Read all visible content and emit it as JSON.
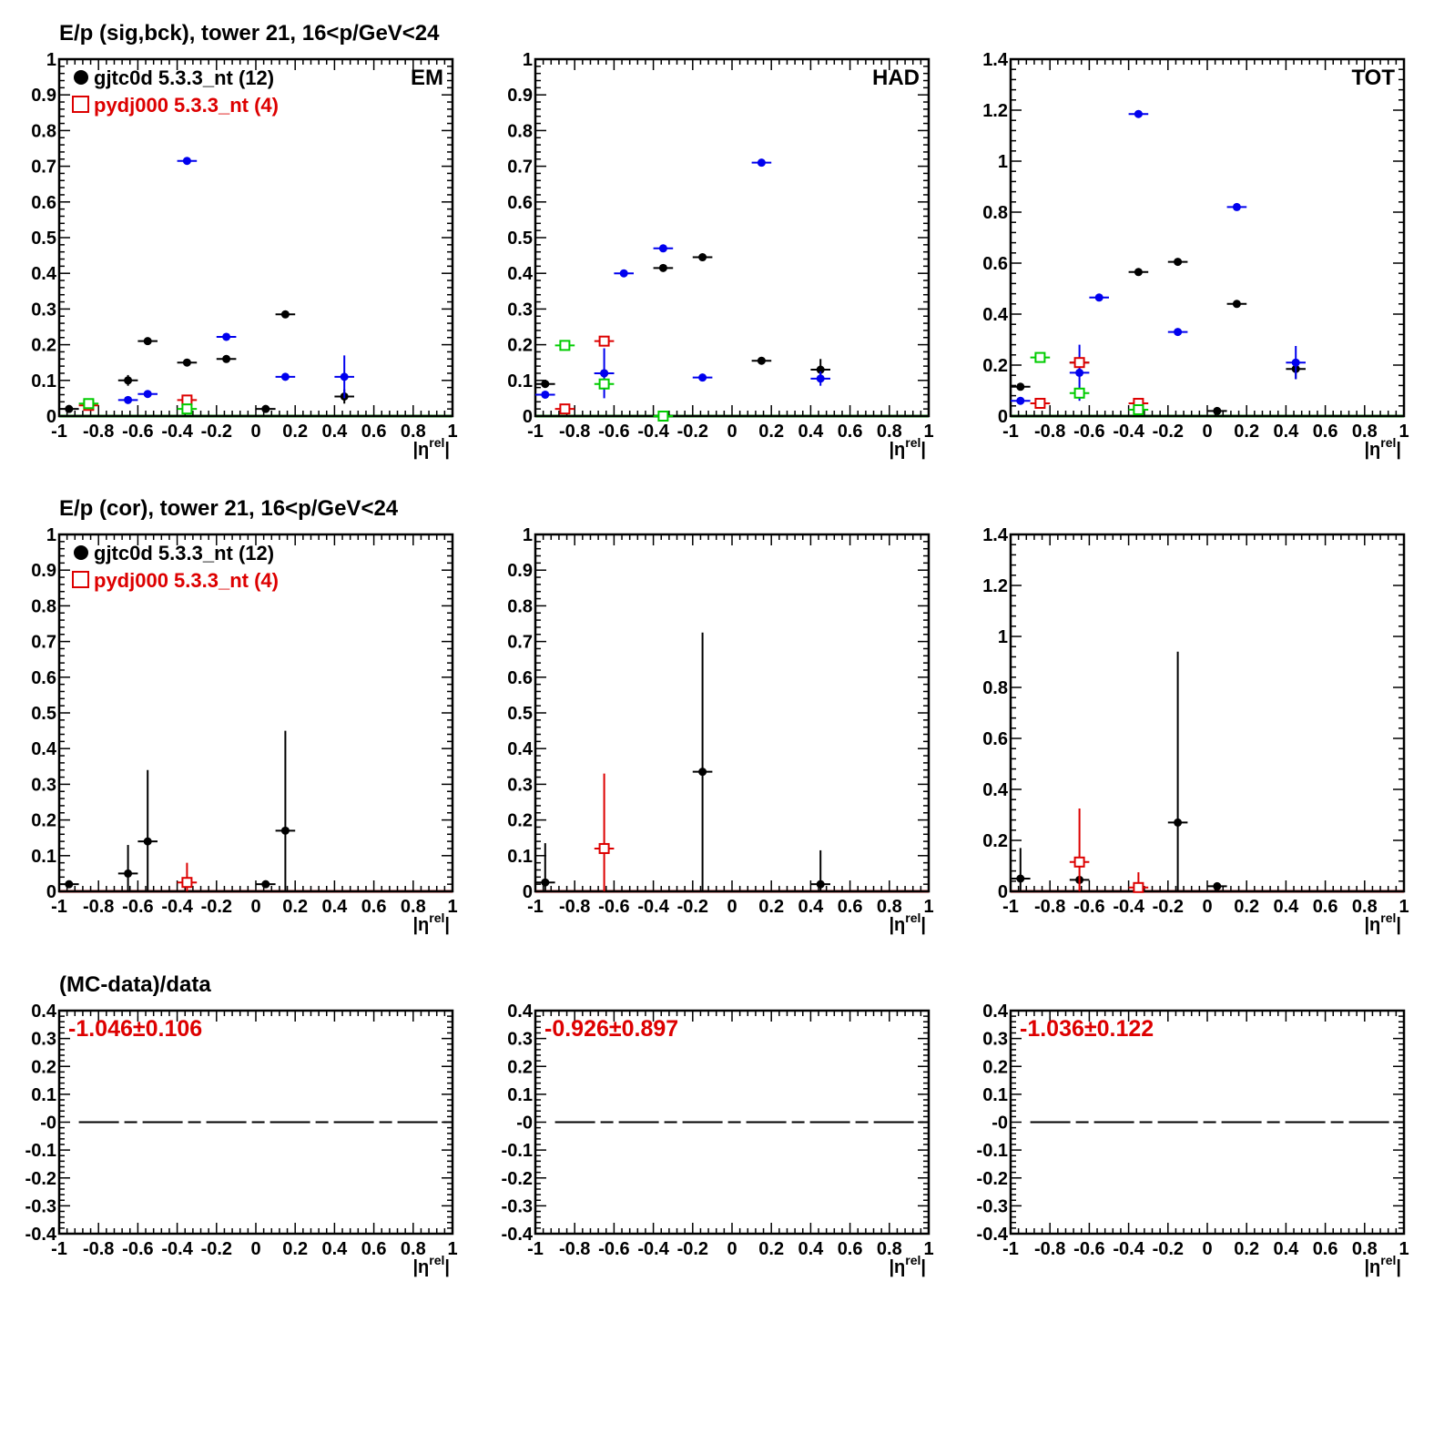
{
  "rows": [
    {
      "title": "E/p (sig,bck), tower 21, 16<p/GeV<24",
      "legend": [
        {
          "label": "gjtc0d 5.3.3_nt (12)",
          "color": "#000000",
          "marker": "filled-circle"
        },
        {
          "label": "pydj000 5.3.3_nt (4)",
          "color": "#dd0000",
          "marker": "open-square"
        }
      ]
    },
    {
      "title": "E/p (cor), tower 21, 16<p/GeV<24",
      "legend": [
        {
          "label": "gjtc0d 5.3.3_nt (12)",
          "color": "#000000",
          "marker": "filled-circle"
        },
        {
          "label": "pydj000 5.3.3_nt (4)",
          "color": "#dd0000",
          "marker": "open-square"
        }
      ]
    },
    {
      "title": "(MC-data)/data",
      "legend": []
    }
  ],
  "colors": {
    "data": "#000000",
    "mc": "#dd0000",
    "sig": "#0000ee",
    "bck": "#00cc00",
    "ratio_text": "#dd0000"
  },
  "chart_data": [
    {
      "type": "scatter",
      "row": 0,
      "col": 0,
      "corner_label": "EM",
      "xlim": [
        -1,
        1
      ],
      "ylim": [
        0,
        1
      ],
      "xlabel": "|η^rel|",
      "xticks": [
        "-1",
        "-0.8",
        "-0.6",
        "-0.4",
        "-0.2",
        "0",
        "0.2",
        "0.4",
        "0.6",
        "0.8",
        "1"
      ],
      "yticks": [
        "0",
        "0.1",
        "0.2",
        "0.3",
        "0.4",
        "0.5",
        "0.6",
        "0.7",
        "0.8",
        "0.9",
        "1"
      ],
      "baseline": {
        "y": 0,
        "color": "#00cc00"
      },
      "series": [
        {
          "color": "#000000",
          "marker": "dot",
          "points": [
            {
              "x": -0.95,
              "y": 0.02,
              "ex": 0.05,
              "ey": 0.005
            },
            {
              "x": -0.65,
              "y": 0.1,
              "ex": 0.05,
              "ey": 0.015
            },
            {
              "x": -0.55,
              "y": 0.21,
              "ex": 0.05,
              "ey": 0.005
            },
            {
              "x": -0.35,
              "y": 0.15,
              "ex": 0.05,
              "ey": 0.005
            },
            {
              "x": -0.15,
              "y": 0.16,
              "ex": 0.05,
              "ey": 0.005
            },
            {
              "x": 0.05,
              "y": 0.02,
              "ex": 0.05,
              "ey": 0.005
            },
            {
              "x": 0.15,
              "y": 0.285,
              "ex": 0.05,
              "ey": 0.005
            },
            {
              "x": 0.45,
              "y": 0.055,
              "ex": 0.05,
              "ey": 0.02
            }
          ]
        },
        {
          "color": "#0000ee",
          "marker": "dot",
          "points": [
            {
              "x": -0.65,
              "y": 0.045,
              "ex": 0.05,
              "ey": 0.005
            },
            {
              "x": -0.55,
              "y": 0.062,
              "ex": 0.05,
              "ey": 0.005
            },
            {
              "x": -0.35,
              "y": 0.715,
              "ex": 0.05,
              "ey": 0.005
            },
            {
              "x": -0.15,
              "y": 0.222,
              "ex": 0.05,
              "ey": 0.005
            },
            {
              "x": 0.15,
              "y": 0.11,
              "ex": 0.05,
              "ey": 0.005
            },
            {
              "x": 0.45,
              "y": 0.11,
              "ex": 0.05,
              "ey": 0.06
            }
          ]
        },
        {
          "color": "#dd0000",
          "marker": "open-square",
          "points": [
            {
              "x": -0.85,
              "y": 0.03,
              "ex": 0.05,
              "ey": 0.005
            },
            {
              "x": -0.35,
              "y": 0.045,
              "ex": 0.05,
              "ey": 0.005
            }
          ]
        },
        {
          "color": "#00cc00",
          "marker": "open-square",
          "points": [
            {
              "x": -0.85,
              "y": 0.035,
              "ex": 0.05,
              "ey": 0.005
            },
            {
              "x": -0.35,
              "y": 0.02,
              "ex": 0.05,
              "ey": 0.005
            }
          ]
        }
      ]
    },
    {
      "type": "scatter",
      "row": 0,
      "col": 1,
      "corner_label": "HAD",
      "xlim": [
        -1,
        1
      ],
      "ylim": [
        0,
        1
      ],
      "xlabel": "|η^rel|",
      "xticks": [
        "-1",
        "-0.8",
        "-0.6",
        "-0.4",
        "-0.2",
        "0",
        "0.2",
        "0.4",
        "0.6",
        "0.8",
        "1"
      ],
      "yticks": [
        "0",
        "0.1",
        "0.2",
        "0.3",
        "0.4",
        "0.5",
        "0.6",
        "0.7",
        "0.8",
        "0.9",
        "1"
      ],
      "baseline": {
        "y": 0,
        "color": "#00cc00"
      },
      "series": [
        {
          "color": "#000000",
          "marker": "dot",
          "points": [
            {
              "x": -0.95,
              "y": 0.09,
              "ex": 0.05,
              "ey": 0.005
            },
            {
              "x": -0.65,
              "y": 0.12,
              "ex": 0.05,
              "ey": 0.005
            },
            {
              "x": -0.35,
              "y": 0.415,
              "ex": 0.05,
              "ey": 0.005
            },
            {
              "x": -0.15,
              "y": 0.445,
              "ex": 0.05,
              "ey": 0.005
            },
            {
              "x": 0.15,
              "y": 0.155,
              "ex": 0.05,
              "ey": 0.005
            },
            {
              "x": 0.45,
              "y": 0.13,
              "ex": 0.05,
              "ey": 0.03
            }
          ]
        },
        {
          "color": "#0000ee",
          "marker": "dot",
          "points": [
            {
              "x": -0.95,
              "y": 0.06,
              "ex": 0.05,
              "ey": 0.005
            },
            {
              "x": -0.65,
              "y": 0.12,
              "ex": 0.05,
              "ey": 0.07
            },
            {
              "x": -0.55,
              "y": 0.4,
              "ex": 0.05,
              "ey": 0.005
            },
            {
              "x": -0.35,
              "y": 0.47,
              "ex": 0.05,
              "ey": 0.005
            },
            {
              "x": -0.15,
              "y": 0.108,
              "ex": 0.05,
              "ey": 0.005
            },
            {
              "x": 0.15,
              "y": 0.71,
              "ex": 0.05,
              "ey": 0.005
            },
            {
              "x": 0.45,
              "y": 0.105,
              "ex": 0.05,
              "ey": 0.02
            }
          ]
        },
        {
          "color": "#dd0000",
          "marker": "open-square",
          "points": [
            {
              "x": -0.85,
              "y": 0.02,
              "ex": 0.05,
              "ey": 0.005
            },
            {
              "x": -0.65,
              "y": 0.21,
              "ex": 0.05,
              "ey": 0.005
            }
          ]
        },
        {
          "color": "#00cc00",
          "marker": "open-square",
          "points": [
            {
              "x": -0.85,
              "y": 0.198,
              "ex": 0.05,
              "ey": 0.005
            },
            {
              "x": -0.65,
              "y": 0.09,
              "ex": 0.05,
              "ey": 0.005
            },
            {
              "x": -0.35,
              "y": 0.0,
              "ex": 0.05,
              "ey": 0.005
            }
          ]
        }
      ]
    },
    {
      "type": "scatter",
      "row": 0,
      "col": 2,
      "corner_label": "TOT",
      "xlim": [
        -1,
        1
      ],
      "ylim": [
        0,
        1.4
      ],
      "xlabel": "|η^rel|",
      "xticks": [
        "-1",
        "-0.8",
        "-0.6",
        "-0.4",
        "-0.2",
        "0",
        "0.2",
        "0.4",
        "0.6",
        "0.8",
        "1"
      ],
      "yticks": [
        "0",
        "0.2",
        "0.4",
        "0.6",
        "0.8",
        "1",
        "1.2",
        "1.4"
      ],
      "baseline": {
        "y": 0,
        "color": "#00cc00"
      },
      "series": [
        {
          "color": "#000000",
          "marker": "dot",
          "points": [
            {
              "x": -0.95,
              "y": 0.115,
              "ex": 0.05,
              "ey": 0.005
            },
            {
              "x": -0.65,
              "y": 0.21,
              "ex": 0.05,
              "ey": 0.005
            },
            {
              "x": -0.35,
              "y": 0.565,
              "ex": 0.05,
              "ey": 0.005
            },
            {
              "x": -0.15,
              "y": 0.605,
              "ex": 0.05,
              "ey": 0.005
            },
            {
              "x": 0.05,
              "y": 0.02,
              "ex": 0.05,
              "ey": 0.005
            },
            {
              "x": 0.15,
              "y": 0.44,
              "ex": 0.05,
              "ey": 0.005
            },
            {
              "x": 0.45,
              "y": 0.185,
              "ex": 0.05,
              "ey": 0.04
            }
          ]
        },
        {
          "color": "#0000ee",
          "marker": "dot",
          "points": [
            {
              "x": -0.95,
              "y": 0.06,
              "ex": 0.05,
              "ey": 0.005
            },
            {
              "x": -0.65,
              "y": 0.17,
              "ex": 0.05,
              "ey": 0.11
            },
            {
              "x": -0.55,
              "y": 0.465,
              "ex": 0.05,
              "ey": 0.005
            },
            {
              "x": -0.35,
              "y": 1.185,
              "ex": 0.05,
              "ey": 0.005
            },
            {
              "x": -0.15,
              "y": 0.33,
              "ex": 0.05,
              "ey": 0.005
            },
            {
              "x": 0.15,
              "y": 0.82,
              "ex": 0.05,
              "ey": 0.005
            },
            {
              "x": 0.45,
              "y": 0.21,
              "ex": 0.05,
              "ey": 0.065
            }
          ]
        },
        {
          "color": "#dd0000",
          "marker": "open-square",
          "points": [
            {
              "x": -0.85,
              "y": 0.05,
              "ex": 0.05,
              "ey": 0.005
            },
            {
              "x": -0.65,
              "y": 0.21,
              "ex": 0.05,
              "ey": 0.005
            },
            {
              "x": -0.35,
              "y": 0.05,
              "ex": 0.05,
              "ey": 0.005
            }
          ]
        },
        {
          "color": "#00cc00",
          "marker": "open-square",
          "points": [
            {
              "x": -0.85,
              "y": 0.23,
              "ex": 0.05,
              "ey": 0.005
            },
            {
              "x": -0.65,
              "y": 0.09,
              "ex": 0.05,
              "ey": 0.005
            },
            {
              "x": -0.35,
              "y": 0.025,
              "ex": 0.05,
              "ey": 0.005
            }
          ]
        }
      ]
    },
    {
      "type": "scatter",
      "row": 1,
      "col": 0,
      "corner_label": "",
      "xlim": [
        -1,
        1
      ],
      "ylim": [
        0,
        1
      ],
      "xlabel": "|η^rel|",
      "xticks": [
        "-1",
        "-0.8",
        "-0.6",
        "-0.4",
        "-0.2",
        "0",
        "0.2",
        "0.4",
        "0.6",
        "0.8",
        "1"
      ],
      "yticks": [
        "0",
        "0.1",
        "0.2",
        "0.3",
        "0.4",
        "0.5",
        "0.6",
        "0.7",
        "0.8",
        "0.9",
        "1"
      ],
      "baseline": {
        "y": 0,
        "color": "#dd0000"
      },
      "series": [
        {
          "color": "#000000",
          "marker": "dot",
          "points": [
            {
              "x": -0.95,
              "y": 0.02,
              "ex": 0.05,
              "ey": 0.005
            },
            {
              "x": -0.65,
              "y": 0.05,
              "ex": 0.05,
              "ey": 0.08
            },
            {
              "x": -0.55,
              "y": 0.14,
              "ex": 0.05,
              "ey": 0.2
            },
            {
              "x": 0.05,
              "y": 0.02,
              "ex": 0.05,
              "ey": 0.01
            },
            {
              "x": 0.15,
              "y": 0.17,
              "ex": 0.05,
              "ey": 0.28
            }
          ]
        },
        {
          "color": "#dd0000",
          "marker": "open-square",
          "points": [
            {
              "x": -0.35,
              "y": 0.025,
              "ex": 0.05,
              "ey": 0.055
            }
          ]
        }
      ]
    },
    {
      "type": "scatter",
      "row": 1,
      "col": 1,
      "corner_label": "",
      "xlim": [
        -1,
        1
      ],
      "ylim": [
        0,
        1
      ],
      "xlabel": "|η^rel|",
      "xticks": [
        "-1",
        "-0.8",
        "-0.6",
        "-0.4",
        "-0.2",
        "0",
        "0.2",
        "0.4",
        "0.6",
        "0.8",
        "1"
      ],
      "yticks": [
        "0",
        "0.1",
        "0.2",
        "0.3",
        "0.4",
        "0.5",
        "0.6",
        "0.7",
        "0.8",
        "0.9",
        "1"
      ],
      "baseline": {
        "y": 0,
        "color": "#dd0000"
      },
      "series": [
        {
          "color": "#000000",
          "marker": "dot",
          "points": [
            {
              "x": -0.95,
              "y": 0.025,
              "ex": 0.05,
              "ey": 0.11
            },
            {
              "x": -0.15,
              "y": 0.335,
              "ex": 0.05,
              "ey": 0.39
            },
            {
              "x": 0.45,
              "y": 0.02,
              "ex": 0.05,
              "ey": 0.095
            }
          ]
        },
        {
          "color": "#dd0000",
          "marker": "open-square",
          "points": [
            {
              "x": -0.65,
              "y": 0.12,
              "ex": 0.05,
              "ey": 0.21
            }
          ]
        }
      ]
    },
    {
      "type": "scatter",
      "row": 1,
      "col": 2,
      "corner_label": "",
      "xlim": [
        -1,
        1
      ],
      "ylim": [
        0,
        1.4
      ],
      "xlabel": "|η^rel|",
      "xticks": [
        "-1",
        "-0.8",
        "-0.6",
        "-0.4",
        "-0.2",
        "0",
        "0.2",
        "0.4",
        "0.6",
        "0.8",
        "1"
      ],
      "yticks": [
        "0",
        "0.2",
        "0.4",
        "0.6",
        "0.8",
        "1",
        "1.2",
        "1.4"
      ],
      "baseline": {
        "y": 0,
        "color": "#dd0000"
      },
      "series": [
        {
          "color": "#000000",
          "marker": "dot",
          "points": [
            {
              "x": -0.95,
              "y": 0.05,
              "ex": 0.05,
              "ey": 0.12
            },
            {
              "x": -0.65,
              "y": 0.045,
              "ex": 0.05,
              "ey": 0.005
            },
            {
              "x": -0.15,
              "y": 0.27,
              "ex": 0.05,
              "ey": 0.67
            },
            {
              "x": 0.05,
              "y": 0.02,
              "ex": 0.05,
              "ey": 0.005
            }
          ]
        },
        {
          "color": "#dd0000",
          "marker": "open-square",
          "points": [
            {
              "x": -0.65,
              "y": 0.115,
              "ex": 0.05,
              "ey": 0.21
            },
            {
              "x": -0.35,
              "y": 0.015,
              "ex": 0.05,
              "ey": 0.06
            }
          ]
        }
      ]
    },
    {
      "type": "line",
      "row": 2,
      "col": 0,
      "annotation": "-1.046±0.106",
      "xlim": [
        -1,
        1
      ],
      "ylim": [
        -0.4,
        0.4
      ],
      "xlabel": "|η^rel|",
      "xticks": [
        "-1",
        "-0.8",
        "-0.6",
        "-0.4",
        "-0.2",
        "0",
        "0.2",
        "0.4",
        "0.6",
        "0.8",
        "1"
      ],
      "yticks": [
        "-0.4",
        "-0.3",
        "-0.2",
        "-0.1",
        "-0",
        "0.1",
        "0.2",
        "0.3",
        "0.4"
      ],
      "dashed_line": {
        "y": 0,
        "from": -0.9,
        "to": 1
      },
      "series": []
    },
    {
      "type": "line",
      "row": 2,
      "col": 1,
      "annotation": "-0.926±0.897",
      "xlim": [
        -1,
        1
      ],
      "ylim": [
        -0.4,
        0.4
      ],
      "xlabel": "|η^rel|",
      "xticks": [
        "-1",
        "-0.8",
        "-0.6",
        "-0.4",
        "-0.2",
        "0",
        "0.2",
        "0.4",
        "0.6",
        "0.8",
        "1"
      ],
      "yticks": [
        "-0.4",
        "-0.3",
        "-0.2",
        "-0.1",
        "-0",
        "0.1",
        "0.2",
        "0.3",
        "0.4"
      ],
      "dashed_line": {
        "y": 0,
        "from": -0.9,
        "to": 1
      },
      "series": []
    },
    {
      "type": "line",
      "row": 2,
      "col": 2,
      "annotation": "-1.036±0.122",
      "xlim": [
        -1,
        1
      ],
      "ylim": [
        -0.4,
        0.4
      ],
      "xlabel": "|η^rel|",
      "xticks": [
        "-1",
        "-0.8",
        "-0.6",
        "-0.4",
        "-0.2",
        "0",
        "0.2",
        "0.4",
        "0.6",
        "0.8",
        "1"
      ],
      "yticks": [
        "-0.4",
        "-0.3",
        "-0.2",
        "-0.1",
        "-0",
        "0.1",
        "0.2",
        "0.3",
        "0.4"
      ],
      "dashed_line": {
        "y": 0,
        "from": -0.9,
        "to": 1
      },
      "series": []
    }
  ]
}
